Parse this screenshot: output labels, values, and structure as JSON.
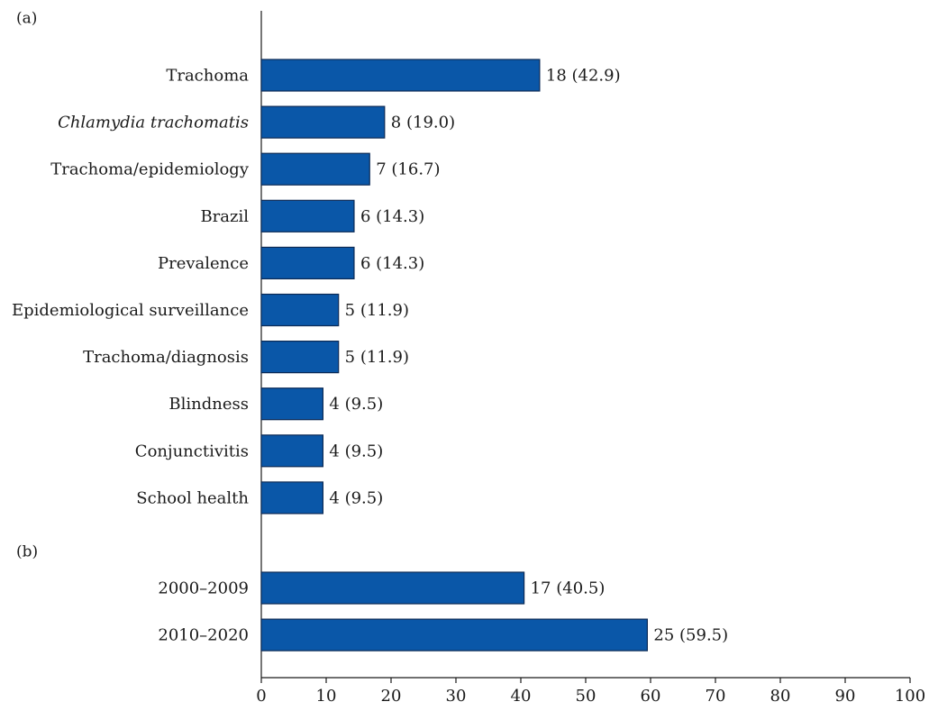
{
  "chart_data": {
    "type": "bar",
    "orientation": "horizontal",
    "bar_color": "#0a57a8",
    "xlim": [
      0,
      100
    ],
    "x_ticks": [
      0,
      10,
      20,
      30,
      40,
      50,
      60,
      70,
      80,
      90,
      100
    ],
    "grid": false,
    "panels": [
      {
        "label": "(a)",
        "categories": [
          "Trachoma",
          "Chlamydia trachomatis",
          "Trachoma/epidemiology",
          "Brazil",
          "Prevalence",
          "Epidemiological surveillance",
          "Trachoma/diagnosis",
          "Blindness",
          "Conjunctivitis",
          "School health"
        ],
        "italic": [
          false,
          true,
          false,
          false,
          false,
          false,
          false,
          false,
          false,
          false
        ],
        "values": [
          42.9,
          19.0,
          16.7,
          14.3,
          14.3,
          11.9,
          11.9,
          9.5,
          9.5,
          9.5
        ],
        "counts": [
          18,
          8,
          7,
          6,
          6,
          5,
          5,
          4,
          4,
          4
        ],
        "value_labels": [
          "18 (42.9)",
          "8 (19.0)",
          "7 (16.7)",
          "6 (14.3)",
          "6 (14.3)",
          "5 (11.9)",
          "5 (11.9)",
          "4 (9.5)",
          "4 (9.5)",
          "4 (9.5)"
        ]
      },
      {
        "label": "(b)",
        "categories": [
          "2000–2009",
          "2010–2020"
        ],
        "italic": [
          false,
          false
        ],
        "values": [
          40.5,
          59.5
        ],
        "counts": [
          17,
          25
        ],
        "value_labels": [
          "17 (40.5)",
          "25 (59.5)"
        ]
      }
    ]
  }
}
